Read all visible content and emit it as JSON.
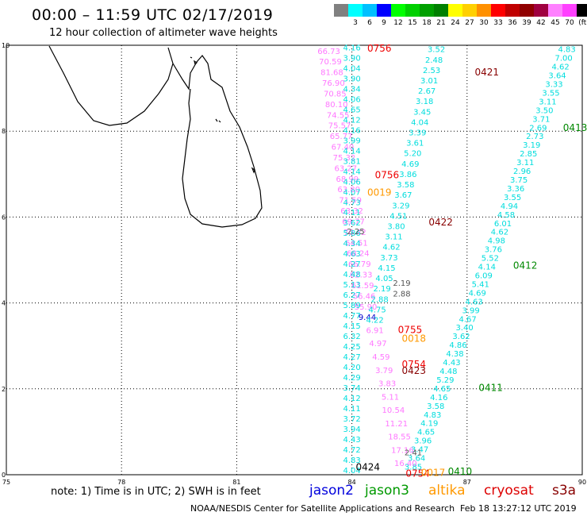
{
  "title": "00:00 – 11:59 UTC 02/17/2019",
  "subtitle": "12 hour collection of altimeter wave heights",
  "scale": {
    "labels": [
      "",
      "3",
      "6",
      "9",
      "12",
      "15",
      "18",
      "21",
      "24",
      "27",
      "30",
      "33",
      "36",
      "39",
      "42",
      "45",
      "70",
      "(ft)"
    ],
    "colors": [
      "#808080",
      "#00ffff",
      "#00c0ff",
      "#0000ff",
      "#00ff00",
      "#00d000",
      "#00a000",
      "#008000",
      "#ffff00",
      "#ffd000",
      "#ff9000",
      "#ff0000",
      "#c00000",
      "#900000",
      "#a00040",
      "#ff80ff",
      "#ff40ff",
      "#000000"
    ]
  },
  "axes": {
    "x_ticks": [
      "75",
      "78",
      "81",
      "84",
      "87",
      "90"
    ],
    "y_ticks": [
      "0",
      "2",
      "4",
      "6",
      "8",
      "10"
    ]
  },
  "tracks": [
    {
      "satellite": "cryosat",
      "color": "#ff77ff",
      "lon_start": 83.4,
      "lat_start": 9.8,
      "lon_end": 84.4,
      "lat_end": 3.6,
      "values": [
        "66.73",
        "70.59",
        "81.68",
        "76.90",
        "70.85",
        "80.10",
        "74.55",
        "75.57",
        "65.77",
        "67.40",
        "75.32",
        "63.27",
        "68.99",
        "63.80",
        "71.59",
        "63.32",
        "69.77",
        "70.42",
        "64.51",
        "68.24",
        "66.79",
        "62.33",
        "61.59",
        "56.46",
        "55.90",
        "9.44"
      ]
    },
    {
      "satellite": "jason3",
      "color": "#00dddd",
      "lon_start": 84.0,
      "lat_start": 9.88,
      "lon_end": 84.0,
      "lat_end": 0.04,
      "values": [
        "4.16",
        "3.90",
        "4.04",
        "3.90",
        "4.34",
        "4.06",
        "4.65",
        "4.12",
        "4.16",
        "3.99",
        "4.14",
        "3.81",
        "4.14",
        "4.06",
        "4.07",
        "4.73",
        "4.11",
        "3.62",
        "5.86",
        "4.34",
        "4.63",
        "4.27",
        "4.48",
        "5.13",
        "6.27",
        "5.89",
        "4.77",
        "4.15",
        "6.32",
        "4.25",
        "4.27",
        "4.20",
        "4.29",
        "3.74",
        "4.12",
        "4.11",
        "3.72",
        "3.94",
        "4.43",
        "4.72",
        "4.83",
        "4.04"
      ]
    },
    {
      "satellite": "s3a",
      "color": "#00dddd",
      "lon_start": 86.2,
      "lat_start": 9.84,
      "lon_end": 84.6,
      "lat_end": 3.54,
      "values": [
        "3.52",
        "2.48",
        "2.53",
        "3.01",
        "2.67",
        "3.18",
        "3.45",
        "4.04",
        "3.39",
        "3.61",
        "5.20",
        "4.69",
        "3.86",
        "3.58",
        "3.67",
        "3.29",
        "4.51",
        "3.80",
        "3.11",
        "4.62",
        "3.73",
        "4.15",
        "4.05",
        "2.19",
        "2.88",
        "4.75",
        "4.22"
      ]
    },
    {
      "satellite": "jason3",
      "color": "#00dddd",
      "lon_start": 89.6,
      "lat_start": 9.84,
      "lon_end": 85.6,
      "lat_end": 0.12,
      "values": [
        "4.83",
        "7.00",
        "4.62",
        "3.64",
        "3.33",
        "3.55",
        "3.11",
        "3.50",
        "3.71",
        "2.69",
        "2.73",
        "3.19",
        "2.85",
        "3.11",
        "2.96",
        "3.75",
        "3.36",
        "3.55",
        "4.94",
        "4.58",
        "6.01",
        "4.62",
        "4.98",
        "3.76",
        "5.52",
        "4.14",
        "6.09",
        "5.41",
        "4.69",
        "4.63",
        "3.99",
        "4.67",
        "3.40",
        "3.62",
        "4.86",
        "4.38",
        "4.43",
        "4.48",
        "5.29",
        "4.65",
        "4.16",
        "3.58",
        "4.83",
        "4.19",
        "4.65",
        "3.96",
        "3.47",
        "3.64",
        "3.85"
      ]
    },
    {
      "satellite": "cryosat",
      "color": "#ff77ff",
      "lon_start": 84.6,
      "lat_start": 3.3,
      "lon_end": 85.4,
      "lat_end": 0.2,
      "values": [
        "6.91",
        "4.97",
        "4.59",
        "3.79",
        "3.83",
        "5.11",
        "10.54",
        "11.21",
        "18.55",
        "17.16",
        "16.40"
      ]
    }
  ],
  "gray_values": [
    {
      "lon": 84.1,
      "lat": 5.6,
      "v": "2.25"
    },
    {
      "lon": 85.3,
      "lat": 4.4,
      "v": "2.19"
    },
    {
      "lon": 85.3,
      "lat": 4.15,
      "v": "2.88"
    },
    {
      "lon": 85.6,
      "lat": 0.45,
      "v": "2.41"
    }
  ],
  "time_labels": [
    {
      "lon": 84.4,
      "lat": 9.85,
      "t": "0756",
      "color": "#ee0000"
    },
    {
      "lon": 87.2,
      "lat": 9.3,
      "t": "0421",
      "color": "#880000"
    },
    {
      "lon": 89.5,
      "lat": 8.0,
      "t": "0413",
      "color": "#008800"
    },
    {
      "lon": 84.6,
      "lat": 6.9,
      "t": "0756",
      "color": "#ee0000"
    },
    {
      "lon": 84.4,
      "lat": 6.5,
      "t": "0019",
      "color": "#ff9900"
    },
    {
      "lon": 86.0,
      "lat": 5.8,
      "t": "0422",
      "color": "#880000"
    },
    {
      "lon": 88.2,
      "lat": 4.8,
      "t": "0412",
      "color": "#008800"
    },
    {
      "lon": 85.2,
      "lat": 3.3,
      "t": "0755",
      "color": "#ee0000"
    },
    {
      "lon": 85.3,
      "lat": 3.1,
      "t": "0018",
      "color": "#ff9900"
    },
    {
      "lon": 85.3,
      "lat": 2.5,
      "t": "0754",
      "color": "#ee0000"
    },
    {
      "lon": 85.3,
      "lat": 2.35,
      "t": "0423",
      "color": "#880000"
    },
    {
      "lon": 87.3,
      "lat": 1.95,
      "t": "0411",
      "color": "#008800"
    },
    {
      "lon": 84.1,
      "lat": 0.1,
      "t": "0424",
      "color": "#000000"
    },
    {
      "lon": 85.4,
      "lat": -0.05,
      "t": "0754",
      "color": "#ee0000"
    },
    {
      "lon": 85.8,
      "lat": -0.03,
      "t": "0017",
      "color": "#ff9900"
    },
    {
      "lon": 86.5,
      "lat": 0.0,
      "t": "0410",
      "color": "#008800"
    }
  ],
  "footer": {
    "note": "note:  1) Time is in UTC;  2) SWH is in feet",
    "satellites": [
      {
        "name": "jason2",
        "color": "#0000dd"
      },
      {
        "name": "jason3",
        "color": "#009900"
      },
      {
        "name": "altika",
        "color": "#ff9900"
      },
      {
        "name": "cryosat",
        "color": "#dd0000"
      },
      {
        "name": "s3a",
        "color": "#880000"
      }
    ],
    "credit": "NOAA/NESDIS Center for Satellite Applications and Research",
    "timestamp": "Feb 18 13:27:12 UTC 2019"
  }
}
